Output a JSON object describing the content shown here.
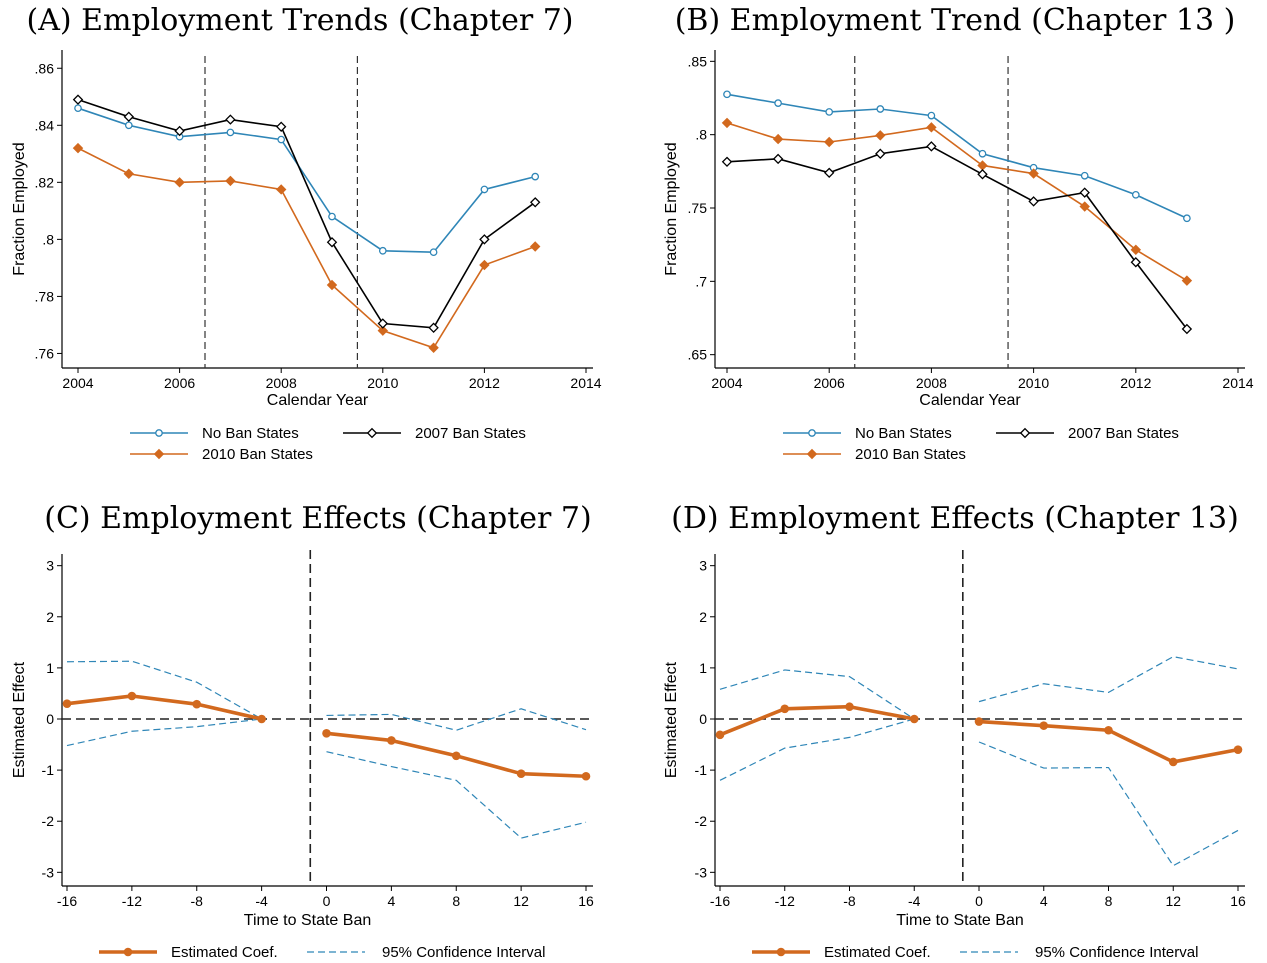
{
  "colors": {
    "no_ban": "#2f86b7",
    "ban_2007": "#000000",
    "ban_2010": "#d2691e",
    "coef": "#d2691e",
    "ci": "#2f86b7"
  },
  "chart_data": [
    {
      "id": "A",
      "type": "line",
      "title": "(A) Employment Trends (Chapter 7)",
      "xlabel": "Calendar Year",
      "ylabel": "Fraction Employed",
      "xlim": [
        2004,
        2014
      ],
      "ylim": [
        0.757,
        0.865
      ],
      "xticks": [
        2004,
        2006,
        2008,
        2010,
        2012,
        2014
      ],
      "yticks": [
        0.76,
        0.78,
        0.8,
        0.82,
        0.84,
        0.86
      ],
      "ytick_labels": [
        ".76",
        ".78",
        ".8",
        ".82",
        ".84",
        ".86"
      ],
      "vlines": [
        2006.5,
        2009.5
      ],
      "legend_position": "bottom",
      "x": [
        2004,
        2005,
        2006,
        2007,
        2008,
        2009,
        2010,
        2011,
        2012,
        2013
      ],
      "series": [
        {
          "name": "No Ban States",
          "marker": "circle",
          "values": [
            0.846,
            0.84,
            0.836,
            0.8375,
            0.835,
            0.808,
            0.796,
            0.7955,
            0.8175,
            0.822
          ]
        },
        {
          "name": "2007 Ban States",
          "marker": "diamond",
          "values": [
            0.849,
            0.843,
            0.838,
            0.842,
            0.8395,
            0.799,
            0.7705,
            0.769,
            0.8,
            0.813
          ]
        },
        {
          "name": "2010 Ban States",
          "marker": "diamond-filled",
          "values": [
            0.832,
            0.823,
            0.82,
            0.8205,
            0.8175,
            0.784,
            0.768,
            0.762,
            0.791,
            0.7975
          ]
        }
      ]
    },
    {
      "id": "B",
      "type": "line",
      "title": "(B) Employment Trend (Chapter 13 )",
      "xlabel": "Calendar Year",
      "ylabel": "Fraction Employed",
      "xlim": [
        2004,
        2014
      ],
      "ylim": [
        0.645,
        0.855
      ],
      "xticks": [
        2004,
        2006,
        2008,
        2010,
        2012,
        2014
      ],
      "yticks": [
        0.65,
        0.7,
        0.75,
        0.8,
        0.85
      ],
      "ytick_labels": [
        ".65",
        ".7",
        ".75",
        ".8",
        ".85"
      ],
      "vlines": [
        2006.5,
        2009.5
      ],
      "legend_position": "bottom",
      "x": [
        2004,
        2005,
        2006,
        2007,
        2008,
        2009,
        2010,
        2011,
        2012,
        2013
      ],
      "series": [
        {
          "name": "No Ban States",
          "marker": "circle",
          "values": [
            0.8275,
            0.8215,
            0.8155,
            0.8175,
            0.813,
            0.787,
            0.7775,
            0.772,
            0.759,
            0.743
          ]
        },
        {
          "name": "2007 Ban States",
          "marker": "diamond",
          "values": [
            0.7815,
            0.7835,
            0.774,
            0.787,
            0.792,
            0.773,
            0.7545,
            0.7605,
            0.713,
            0.6675
          ]
        },
        {
          "name": "2010 Ban States",
          "marker": "diamond-filled",
          "values": [
            0.808,
            0.797,
            0.795,
            0.7995,
            0.805,
            0.779,
            0.7735,
            0.751,
            0.7215,
            0.7005
          ]
        }
      ]
    },
    {
      "id": "C",
      "type": "line",
      "title": "(C) Employment Effects (Chapter 7)",
      "xlabel": "Time to State Ban",
      "ylabel": "Estimated Effect",
      "xlim": [
        -16,
        16
      ],
      "ylim": [
        -3.15,
        3.15
      ],
      "xticks": [
        -16,
        -12,
        -8,
        -4,
        0,
        4,
        8,
        12,
        16
      ],
      "yticks": [
        -3,
        -2,
        -1,
        0,
        1,
        2,
        3
      ],
      "ytick_labels": [
        "-3",
        "-2",
        "-1",
        "0",
        "1",
        "2",
        "3"
      ],
      "vline": -1,
      "hline": 0,
      "legend_position": "bottom",
      "coef": {
        "name": "Estimated Coef.",
        "pre": {
          "x": [
            -16,
            -12,
            -8,
            -4
          ],
          "y": [
            0.3,
            0.45,
            0.29,
            0.0
          ]
        },
        "post": {
          "x": [
            0,
            4,
            8,
            12,
            16
          ],
          "y": [
            -0.28,
            -0.42,
            -0.72,
            -1.07,
            -1.12
          ]
        }
      },
      "ci": {
        "name": "95% Confidence Interval",
        "pre_upper": [
          1.12,
          1.13,
          0.72,
          0.0
        ],
        "pre_lower": [
          -0.52,
          -0.24,
          -0.15,
          0.0
        ],
        "post_upper": [
          0.07,
          0.09,
          -0.22,
          0.2,
          -0.21
        ],
        "post_lower": [
          -0.64,
          -0.93,
          -1.2,
          -2.33,
          -2.02
        ]
      }
    },
    {
      "id": "D",
      "type": "line",
      "title": "(D) Employment Effects (Chapter 13)",
      "xlabel": "Time to State Ban",
      "ylabel": "Estimated Effect",
      "xlim": [
        -16,
        16
      ],
      "ylim": [
        -3.15,
        3.15
      ],
      "xticks": [
        -16,
        -12,
        -8,
        -4,
        0,
        4,
        8,
        12,
        16
      ],
      "yticks": [
        -3,
        -2,
        -1,
        0,
        1,
        2,
        3
      ],
      "ytick_labels": [
        "-3",
        "-2",
        "-1",
        "0",
        "1",
        "2",
        "3"
      ],
      "vline": -1,
      "hline": 0,
      "legend_position": "bottom",
      "coef": {
        "name": "Estimated Coef.",
        "pre": {
          "x": [
            -16,
            -12,
            -8,
            -4
          ],
          "y": [
            -0.31,
            0.2,
            0.24,
            0.0
          ]
        },
        "post": {
          "x": [
            0,
            4,
            8,
            12,
            16
          ],
          "y": [
            -0.05,
            -0.13,
            -0.22,
            -0.84,
            -0.6
          ]
        }
      },
      "ci": {
        "name": "95% Confidence Interval",
        "pre_upper": [
          0.58,
          0.96,
          0.83,
          0.0
        ],
        "pre_lower": [
          -1.2,
          -0.57,
          -0.36,
          0.0
        ],
        "post_upper": [
          0.34,
          0.69,
          0.52,
          1.22,
          0.98
        ],
        "post_lower": [
          -0.45,
          -0.96,
          -0.95,
          -2.87,
          -2.18
        ]
      }
    }
  ]
}
